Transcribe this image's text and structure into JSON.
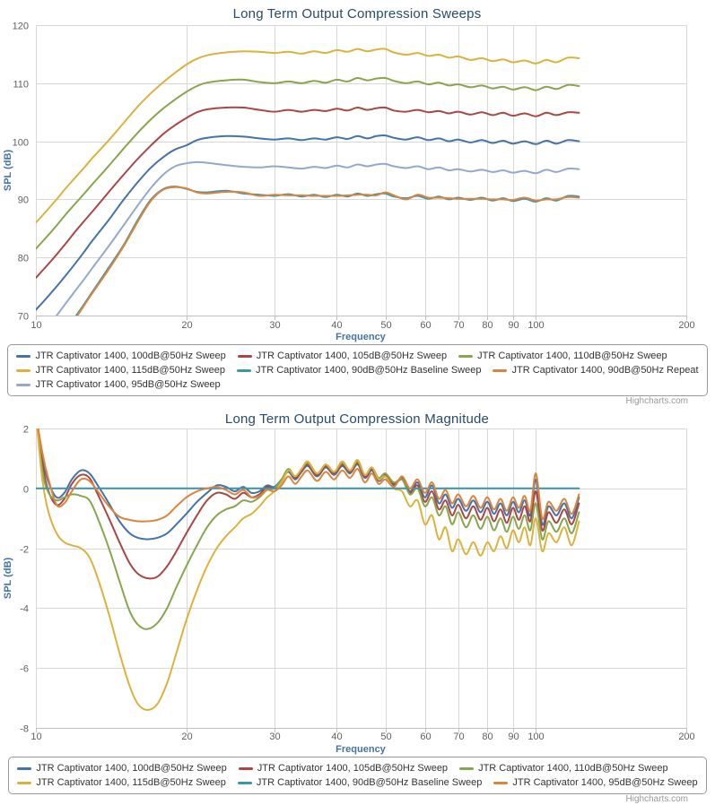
{
  "credits": {
    "label": "Highcharts.com"
  },
  "styles": {
    "title_color": "#274b6d",
    "axis_title_color": "#4572A7",
    "axis_label_color": "#606060",
    "grid_color": "#d8d8d8",
    "axis_line_color": "#c0c0c0",
    "legend_border_color": "#999999",
    "legend_text_color": "#333333",
    "credits_color": "#999999",
    "background": "#ffffff"
  },
  "chart_data": [
    {
      "type": "line",
      "title": "Long Term Output Compression Sweeps",
      "xlabel": "Frequency",
      "ylabel": "SPL (dB)",
      "x_scale": "log",
      "xlim": [
        10,
        200
      ],
      "ylim": [
        70,
        120
      ],
      "x_ticks": [
        10,
        20,
        30,
        40,
        50,
        60,
        70,
        80,
        90,
        100,
        200
      ],
      "y_ticks": [
        70,
        80,
        90,
        100,
        110,
        120
      ],
      "grid": true,
      "legend_position": "bottom",
      "legend_rows": [
        [
          0,
          1,
          2
        ],
        [
          3,
          4,
          5
        ],
        [
          6
        ]
      ],
      "x": [
        10,
        10.5,
        11,
        11.5,
        12,
        12.5,
        13,
        14,
        15,
        16,
        17,
        18,
        19,
        20,
        21,
        22,
        24,
        26,
        28,
        30,
        32,
        34,
        36,
        38,
        40,
        42,
        44,
        46,
        48,
        50,
        52,
        55,
        58,
        61,
        64,
        67,
        70,
        74,
        78,
        82,
        86,
        90,
        95,
        100,
        105,
        110,
        116,
        122
      ],
      "series": [
        {
          "name": "JTR Captivator 1400, 100dB@50Hz Sweep",
          "color": "#4572A7",
          "values": [
            71,
            73,
            75,
            77,
            79,
            81,
            83,
            86.5,
            90,
            93,
            95.5,
            97.3,
            98.6,
            99.3,
            100.2,
            100.6,
            100.9,
            100.8,
            100.5,
            100.3,
            100.5,
            100.2,
            100.5,
            100.3,
            100.7,
            100.4,
            100.9,
            100.5,
            100.9,
            101,
            100.6,
            100.3,
            100.7,
            100.2,
            100.5,
            100,
            100.3,
            99.8,
            100.2,
            99.7,
            100.1,
            99.6,
            100,
            99.5,
            100.1,
            99.6,
            100.2,
            100
          ]
        },
        {
          "name": "JTR Captivator 1400, 105dB@50Hz Sweep",
          "color": "#AA4643",
          "values": [
            76.5,
            78.5,
            80.5,
            82.5,
            84.5,
            86.3,
            88,
            91.3,
            94.3,
            97,
            99.3,
            101.3,
            102.8,
            104,
            105,
            105.5,
            105.8,
            105.8,
            105.4,
            105.1,
            105.4,
            105.1,
            105.4,
            105.2,
            105.6,
            105.3,
            105.8,
            105.4,
            105.7,
            105.8,
            105.3,
            105.1,
            105.4,
            105,
            105.2,
            104.8,
            105.1,
            104.6,
            105,
            104.5,
            104.9,
            104.4,
            104.8,
            104.3,
            104.9,
            104.5,
            105,
            104.9
          ]
        },
        {
          "name": "JTR Captivator 1400, 110dB@50Hz Sweep",
          "color": "#89A54E",
          "values": [
            81.5,
            83.5,
            85.5,
            87.5,
            89.3,
            91,
            92.7,
            95.8,
            98.8,
            101.5,
            103.8,
            105.7,
            107.2,
            108.5,
            109.5,
            110.1,
            110.5,
            110.6,
            110.2,
            110,
            110.3,
            110,
            110.4,
            110.1,
            110.6,
            110.3,
            110.9,
            110.5,
            110.8,
            110.9,
            110.4,
            110,
            110.3,
            109.8,
            110.1,
            109.6,
            109.8,
            109.3,
            109.6,
            109.1,
            109.4,
            108.9,
            109.3,
            108.8,
            109.4,
            109,
            109.7,
            109.5
          ]
        },
        {
          "name": "JTR Captivator 1400, 115dB@50Hz Sweep",
          "color": "#DBB33C",
          "values": [
            86,
            88,
            90,
            92,
            93.8,
            95.5,
            97.2,
            100.2,
            103.2,
            106,
            108.3,
            110.2,
            111.8,
            113.2,
            114.2,
            114.8,
            115.3,
            115.5,
            115.4,
            115.2,
            115.4,
            115.1,
            115.5,
            115.2,
            115.7,
            115.4,
            115.9,
            115.5,
            115.8,
            115.9,
            115.3,
            114.9,
            115.2,
            114.7,
            114.9,
            114.4,
            114.6,
            114,
            114.3,
            113.8,
            114.1,
            113.6,
            113.9,
            113.4,
            114,
            113.6,
            114.4,
            114.3
          ]
        },
        {
          "name": "JTR Captivator 1400, 90dB@50Hz Baseline Sweep",
          "color": "#3D96AE",
          "values": [
            61,
            63,
            65.2,
            67.5,
            69.8,
            72,
            74.2,
            78.3,
            82.2,
            86.5,
            90,
            91.8,
            92.2,
            91.8,
            91.3,
            91.2,
            91.5,
            91,
            90.8,
            90.6,
            90.9,
            90.5,
            90.8,
            90.4,
            90.8,
            90.5,
            91,
            90.6,
            90.9,
            91,
            90.5,
            90.2,
            90.6,
            90.1,
            90.5,
            90,
            90.3,
            89.9,
            90.3,
            89.8,
            90.2,
            89.7,
            90.1,
            89.6,
            90.2,
            89.8,
            90.6,
            90.5
          ]
        },
        {
          "name": "JTR Captivator 1400, 90dB@50Hz Repeat",
          "color": "#DB843D",
          "values": [
            60.5,
            62.5,
            64.8,
            67.2,
            69.5,
            71.8,
            74,
            78,
            82,
            86.2,
            89.8,
            91.7,
            92.1,
            91.9,
            91.2,
            91,
            91.3,
            91.2,
            90.6,
            90.8,
            90.7,
            90.7,
            90.6,
            90.6,
            90.6,
            90.7,
            90.8,
            90.8,
            90.7,
            91.2,
            90.7,
            90,
            90.8,
            90.3,
            90.3,
            90.2,
            90.1,
            90.1,
            90.1,
            90,
            90,
            89.9,
            90.3,
            89.8,
            90,
            90,
            90.4,
            90.3
          ]
        },
        {
          "name": "JTR Captivator 1400, 95dB@50Hz Sweep",
          "color": "#92A8CD",
          "values": [
            66,
            68,
            70,
            72.2,
            74.3,
            76.3,
            78.3,
            82,
            85.6,
            89,
            92,
            94.3,
            95.7,
            96.2,
            96.4,
            96.3,
            95.9,
            95.6,
            95.5,
            95.7,
            95.5,
            95.3,
            95.6,
            95.4,
            95.8,
            95.5,
            96,
            95.7,
            96,
            96.1,
            95.7,
            95.4,
            95.7,
            95.2,
            95.5,
            95,
            95.2,
            94.8,
            95.1,
            94.7,
            95,
            94.6,
            94.9,
            94.5,
            95.1,
            94.7,
            95.3,
            95.2
          ]
        }
      ]
    },
    {
      "type": "line",
      "title": "Long Term Output Compression Magnitude",
      "xlabel": "Frequency",
      "ylabel": "SPL (dB)",
      "x_scale": "log",
      "xlim": [
        10,
        200
      ],
      "ylim": [
        -8,
        2
      ],
      "x_ticks": [
        10,
        20,
        30,
        40,
        50,
        60,
        70,
        80,
        90,
        100,
        200
      ],
      "y_ticks": [
        -8,
        -6,
        -4,
        -2,
        0,
        2
      ],
      "grid": true,
      "legend_position": "bottom",
      "legend_rows": [
        [
          0,
          1,
          2
        ],
        [
          3,
          4,
          5
        ]
      ],
      "x": [
        10,
        10.3,
        10.6,
        11,
        11.4,
        11.8,
        12.3,
        12.8,
        13.3,
        14,
        14.7,
        15.4,
        16,
        16.7,
        17.5,
        18.3,
        19.1,
        20,
        21,
        22,
        23,
        24,
        25,
        26,
        27,
        28,
        29,
        30,
        31,
        32,
        33,
        34,
        35,
        36.5,
        38,
        39.5,
        41,
        42.5,
        44,
        45.5,
        47,
        48.5,
        50,
        52,
        54,
        56,
        58,
        60,
        62,
        64,
        66,
        68,
        70,
        72.5,
        75,
        77.5,
        80,
        82.5,
        85,
        87.5,
        90,
        92.5,
        95,
        97.5,
        100,
        103,
        106,
        110,
        114,
        118,
        122
      ],
      "series": [
        {
          "name": "JTR Captivator 1400, 100dB@50Hz Sweep",
          "color": "#4572A7",
          "values": [
            2.5,
            1.0,
            0.2,
            -0.3,
            -0.15,
            0.3,
            0.6,
            0.5,
            0.1,
            -0.5,
            -1.1,
            -1.5,
            -1.65,
            -1.7,
            -1.65,
            -1.5,
            -1.2,
            -0.85,
            -0.45,
            -0.15,
            0.1,
            0.05,
            -0.1,
            0.05,
            -0.15,
            -0.1,
            0.1,
            0.05,
            0.3,
            0.55,
            0.3,
            0.55,
            0.75,
            0.4,
            0.7,
            0.45,
            0.75,
            0.5,
            0.8,
            0.35,
            0.6,
            0.25,
            0.4,
            0.1,
            0.35,
            -0.1,
            0.2,
            -0.3,
            0.1,
            -0.5,
            -0.2,
            -0.65,
            -0.35,
            -0.75,
            -0.4,
            -0.8,
            -0.45,
            -0.85,
            -0.5,
            -0.9,
            -0.45,
            -0.8,
            -0.4,
            -0.9,
            0.3,
            -1.2,
            -0.6,
            -0.9,
            -0.5,
            -1.0,
            -0.3
          ]
        },
        {
          "name": "JTR Captivator 1400, 105dB@50Hz Sweep",
          "color": "#AA4643",
          "values": [
            2.5,
            0.8,
            -0.1,
            -0.55,
            -0.35,
            0.15,
            0.45,
            0.35,
            -0.2,
            -1.0,
            -1.8,
            -2.5,
            -2.85,
            -3.0,
            -2.95,
            -2.6,
            -2.1,
            -1.5,
            -0.9,
            -0.4,
            -0.15,
            -0.2,
            -0.35,
            -0.15,
            -0.3,
            -0.2,
            0.05,
            0.0,
            0.25,
            0.6,
            0.35,
            0.6,
            0.8,
            0.45,
            0.75,
            0.5,
            0.8,
            0.55,
            0.85,
            0.4,
            0.65,
            0.3,
            0.45,
            0.15,
            0.3,
            -0.15,
            0.1,
            -0.45,
            -0.1,
            -0.7,
            -0.4,
            -0.9,
            -0.55,
            -1.0,
            -0.6,
            -1.05,
            -0.65,
            -1.1,
            -0.7,
            -1.15,
            -0.65,
            -1.05,
            -0.6,
            -1.1,
            -0.1,
            -1.4,
            -0.8,
            -1.15,
            -0.7,
            -1.2,
            -0.5
          ]
        },
        {
          "name": "JTR Captivator 1400, 110dB@50Hz Sweep",
          "color": "#89A54E",
          "values": [
            2.5,
            0.6,
            -0.15,
            -0.4,
            -0.3,
            -0.2,
            -0.25,
            -0.4,
            -1.0,
            -2.0,
            -3.1,
            -4.1,
            -4.55,
            -4.7,
            -4.5,
            -4.0,
            -3.3,
            -2.6,
            -1.9,
            -1.3,
            -0.9,
            -0.7,
            -0.6,
            -0.4,
            -0.45,
            -0.3,
            -0.05,
            0.0,
            0.3,
            0.65,
            0.4,
            0.65,
            0.85,
            0.5,
            0.8,
            0.55,
            0.85,
            0.6,
            0.9,
            0.45,
            0.7,
            0.35,
            0.5,
            0.2,
            0.3,
            -0.2,
            0.0,
            -0.6,
            -0.3,
            -0.9,
            -0.6,
            -1.2,
            -0.8,
            -1.3,
            -0.9,
            -1.35,
            -0.95,
            -1.4,
            -1.0,
            -1.45,
            -0.95,
            -1.35,
            -0.9,
            -1.4,
            -0.5,
            -1.7,
            -1.1,
            -1.45,
            -1.0,
            -1.5,
            -0.8
          ]
        },
        {
          "name": "JTR Captivator 1400, 115dB@50Hz Sweep",
          "color": "#DBB33C",
          "values": [
            2.5,
            0.3,
            -0.8,
            -1.5,
            -1.8,
            -1.9,
            -2.0,
            -2.3,
            -3.0,
            -4.2,
            -5.5,
            -6.6,
            -7.2,
            -7.4,
            -7.2,
            -6.5,
            -5.5,
            -4.4,
            -3.4,
            -2.6,
            -2.0,
            -1.6,
            -1.3,
            -1.0,
            -0.85,
            -0.6,
            -0.3,
            -0.1,
            0.2,
            0.6,
            0.4,
            0.65,
            0.9,
            0.5,
            0.8,
            0.55,
            0.9,
            0.6,
            0.95,
            0.45,
            0.7,
            0.3,
            0.4,
            0.0,
            -0.1,
            -0.6,
            -0.4,
            -1.2,
            -0.9,
            -1.7,
            -1.3,
            -2.1,
            -1.7,
            -2.2,
            -1.8,
            -2.25,
            -1.8,
            -2.1,
            -1.6,
            -2.0,
            -1.4,
            -1.8,
            -1.3,
            -1.9,
            -1.0,
            -2.1,
            -1.5,
            -1.8,
            -1.3,
            -1.9,
            -1.1
          ]
        },
        {
          "name": "JTR Captivator 1400, 90dB@50Hz Baseline Sweep",
          "color": "#3D96AE",
          "values": [
            0,
            0,
            0,
            0,
            0,
            0,
            0,
            0,
            0,
            0,
            0,
            0,
            0,
            0,
            0,
            0,
            0,
            0,
            0,
            0,
            0,
            0,
            0,
            0,
            0,
            0,
            0,
            0,
            0,
            0,
            0,
            0,
            0,
            0,
            0,
            0,
            0,
            0,
            0,
            0,
            0,
            0,
            0,
            0,
            0,
            0,
            0,
            0,
            0,
            0,
            0,
            0,
            0,
            0,
            0,
            0,
            0,
            0,
            0,
            0,
            0,
            0,
            0,
            0,
            0,
            0,
            0,
            0,
            0,
            0,
            0
          ]
        },
        {
          "name": "JTR Captivator 1400, 95dB@50Hz Sweep",
          "color": "#DB843D",
          "values": [
            2.5,
            1.2,
            0.3,
            -0.55,
            -0.5,
            -0.1,
            0.3,
            0.25,
            -0.1,
            -0.6,
            -0.95,
            -1.05,
            -1.1,
            -1.1,
            -1.05,
            -0.9,
            -0.6,
            -0.3,
            -0.1,
            0.0,
            0.05,
            -0.05,
            -0.2,
            -0.05,
            -0.3,
            -0.25,
            -0.05,
            -0.1,
            0.1,
            0.4,
            0.15,
            0.4,
            0.6,
            0.25,
            0.55,
            0.3,
            0.6,
            0.35,
            0.65,
            0.2,
            0.5,
            0.15,
            0.3,
            0.05,
            0.4,
            0.0,
            0.3,
            -0.15,
            0.2,
            -0.35,
            -0.05,
            -0.5,
            -0.2,
            -0.6,
            -0.25,
            -0.65,
            -0.3,
            -0.7,
            -0.35,
            -0.75,
            -0.3,
            -0.65,
            -0.25,
            -0.75,
            0.5,
            -1.0,
            -0.45,
            -0.75,
            -0.35,
            -0.85,
            -0.2
          ]
        }
      ]
    }
  ]
}
